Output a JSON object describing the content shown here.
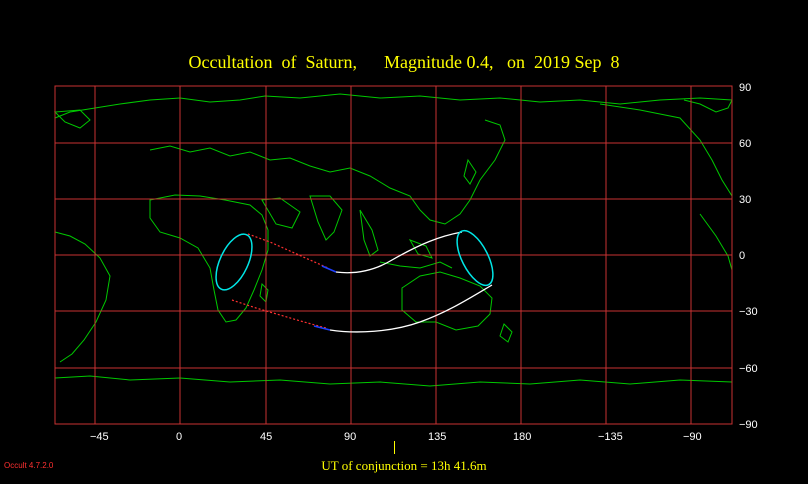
{
  "title": {
    "object": "Occultation  of  Saturn,",
    "magnitude": "Magnitude 0.4,",
    "date": "on  2019 Sep  8"
  },
  "axes": {
    "longitude_labels": [
      "−45",
      "0",
      "45",
      "90",
      "135",
      "180",
      "−135",
      "−90"
    ],
    "latitude_labels": [
      "90",
      "60",
      "30",
      "0",
      "−30",
      "−60",
      "−90"
    ]
  },
  "footer": {
    "conjunction": "UT of conjunction = 13h 41.6m"
  },
  "version": "Occult 4.7.2.0",
  "colors": {
    "background": "#000000",
    "title": "#ffff00",
    "grid": "#c83232",
    "coast": "#00c800",
    "path": "#ffffff",
    "limb": "#00e5e5",
    "night_dotted": "#ff3030",
    "twilight": "#2040ff"
  }
}
